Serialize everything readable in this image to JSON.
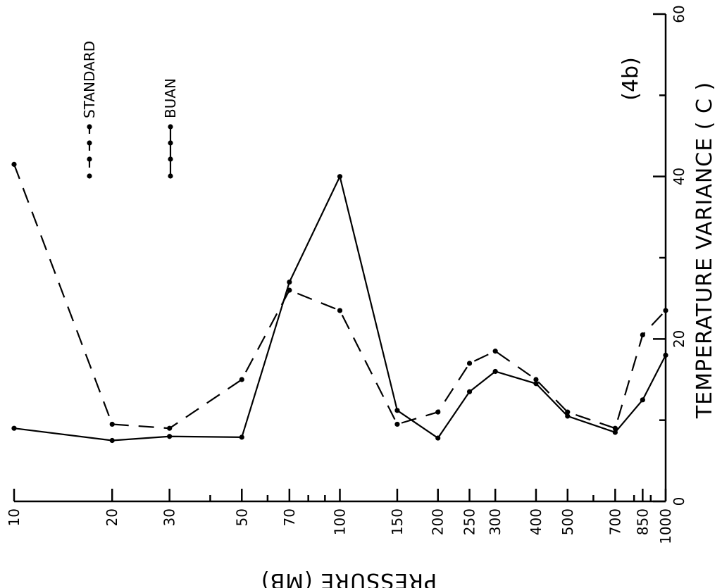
{
  "chart_data": {
    "type": "line",
    "annotation": "(4b)",
    "xlabel": "PRESSURE (MB)",
    "ylabel": "TEMPERATURE VARIANCE ( C )",
    "x_scale": "log",
    "x_ticks": [
      10,
      20,
      30,
      50,
      70,
      100,
      150,
      200,
      250,
      300,
      400,
      500,
      700,
      850,
      1000
    ],
    "x_tick_labels": [
      "10",
      "20",
      "30",
      "50",
      "70",
      "100",
      "150",
      "200",
      "250",
      "300",
      "400",
      "500",
      "700",
      "850",
      "1000"
    ],
    "xlim": [
      10,
      1000
    ],
    "y_ticks": [
      0,
      20,
      40,
      60
    ],
    "y_tick_labels": [
      "0",
      "20",
      "40",
      "60"
    ],
    "ylim": [
      0,
      60
    ],
    "x": [
      10,
      20,
      30,
      50,
      70,
      100,
      150,
      200,
      250,
      300,
      400,
      500,
      700,
      850,
      1000
    ],
    "series": [
      {
        "name": "STANDARD",
        "style": "dashed",
        "values": [
          41.5,
          9.5,
          9.0,
          15.0,
          26.0,
          23.5,
          9.5,
          11.0,
          17.0,
          18.5,
          15.0,
          11.0,
          9.0,
          20.5,
          23.5
        ]
      },
      {
        "name": "BUAN",
        "style": "solid",
        "values": [
          9.0,
          7.5,
          8.0,
          7.9,
          27.0,
          40.0,
          11.2,
          7.8,
          13.5,
          16.0,
          14.5,
          10.5,
          8.5,
          12.5,
          18.0
        ]
      }
    ],
    "legend_position": "top-left"
  }
}
